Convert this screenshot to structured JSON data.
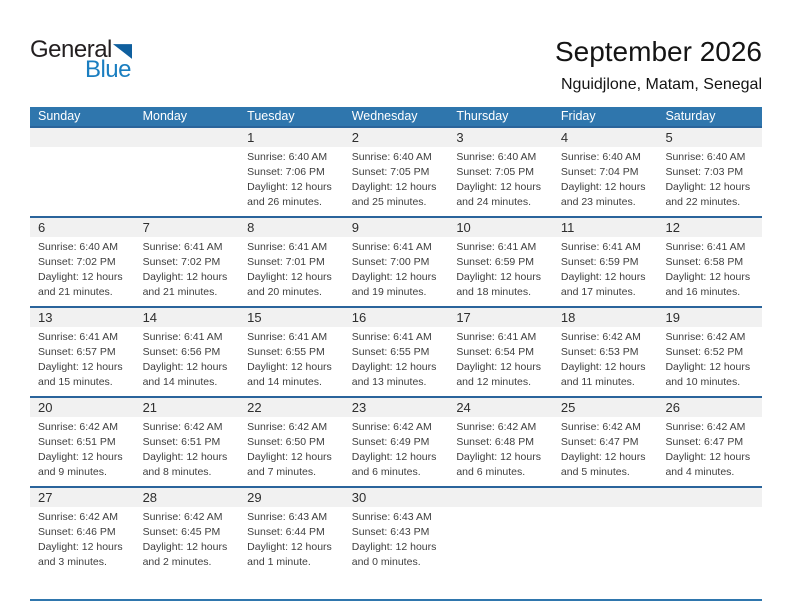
{
  "logo": {
    "part1": "General",
    "part2": "Blue"
  },
  "title": "September 2026",
  "subtitle": "Nguidjlone, Matam, Senegal",
  "weekdays": [
    "Sunday",
    "Monday",
    "Tuesday",
    "Wednesday",
    "Thursday",
    "Friday",
    "Saturday"
  ],
  "colors": {
    "header_bg": "#2f76ad",
    "row_border": "#2a649b",
    "band_bg": "#f1f1f1",
    "bottom_line": "#2f76ad",
    "logo_blue": "#1a7ec0",
    "logo_triangle": "#0f5f9e",
    "logo_black": "#231f20"
  },
  "weeks": [
    [
      null,
      null,
      {
        "day": "1",
        "sunrise": "Sunrise: 6:40 AM",
        "sunset": "Sunset: 7:06 PM",
        "daylight1": "Daylight: 12 hours",
        "daylight2": "and 26 minutes."
      },
      {
        "day": "2",
        "sunrise": "Sunrise: 6:40 AM",
        "sunset": "Sunset: 7:05 PM",
        "daylight1": "Daylight: 12 hours",
        "daylight2": "and 25 minutes."
      },
      {
        "day": "3",
        "sunrise": "Sunrise: 6:40 AM",
        "sunset": "Sunset: 7:05 PM",
        "daylight1": "Daylight: 12 hours",
        "daylight2": "and 24 minutes."
      },
      {
        "day": "4",
        "sunrise": "Sunrise: 6:40 AM",
        "sunset": "Sunset: 7:04 PM",
        "daylight1": "Daylight: 12 hours",
        "daylight2": "and 23 minutes."
      },
      {
        "day": "5",
        "sunrise": "Sunrise: 6:40 AM",
        "sunset": "Sunset: 7:03 PM",
        "daylight1": "Daylight: 12 hours",
        "daylight2": "and 22 minutes."
      }
    ],
    [
      {
        "day": "6",
        "sunrise": "Sunrise: 6:40 AM",
        "sunset": "Sunset: 7:02 PM",
        "daylight1": "Daylight: 12 hours",
        "daylight2": "and 21 minutes."
      },
      {
        "day": "7",
        "sunrise": "Sunrise: 6:41 AM",
        "sunset": "Sunset: 7:02 PM",
        "daylight1": "Daylight: 12 hours",
        "daylight2": "and 21 minutes."
      },
      {
        "day": "8",
        "sunrise": "Sunrise: 6:41 AM",
        "sunset": "Sunset: 7:01 PM",
        "daylight1": "Daylight: 12 hours",
        "daylight2": "and 20 minutes."
      },
      {
        "day": "9",
        "sunrise": "Sunrise: 6:41 AM",
        "sunset": "Sunset: 7:00 PM",
        "daylight1": "Daylight: 12 hours",
        "daylight2": "and 19 minutes."
      },
      {
        "day": "10",
        "sunrise": "Sunrise: 6:41 AM",
        "sunset": "Sunset: 6:59 PM",
        "daylight1": "Daylight: 12 hours",
        "daylight2": "and 18 minutes."
      },
      {
        "day": "11",
        "sunrise": "Sunrise: 6:41 AM",
        "sunset": "Sunset: 6:59 PM",
        "daylight1": "Daylight: 12 hours",
        "daylight2": "and 17 minutes."
      },
      {
        "day": "12",
        "sunrise": "Sunrise: 6:41 AM",
        "sunset": "Sunset: 6:58 PM",
        "daylight1": "Daylight: 12 hours",
        "daylight2": "and 16 minutes."
      }
    ],
    [
      {
        "day": "13",
        "sunrise": "Sunrise: 6:41 AM",
        "sunset": "Sunset: 6:57 PM",
        "daylight1": "Daylight: 12 hours",
        "daylight2": "and 15 minutes."
      },
      {
        "day": "14",
        "sunrise": "Sunrise: 6:41 AM",
        "sunset": "Sunset: 6:56 PM",
        "daylight1": "Daylight: 12 hours",
        "daylight2": "and 14 minutes."
      },
      {
        "day": "15",
        "sunrise": "Sunrise: 6:41 AM",
        "sunset": "Sunset: 6:55 PM",
        "daylight1": "Daylight: 12 hours",
        "daylight2": "and 14 minutes."
      },
      {
        "day": "16",
        "sunrise": "Sunrise: 6:41 AM",
        "sunset": "Sunset: 6:55 PM",
        "daylight1": "Daylight: 12 hours",
        "daylight2": "and 13 minutes."
      },
      {
        "day": "17",
        "sunrise": "Sunrise: 6:41 AM",
        "sunset": "Sunset: 6:54 PM",
        "daylight1": "Daylight: 12 hours",
        "daylight2": "and 12 minutes."
      },
      {
        "day": "18",
        "sunrise": "Sunrise: 6:42 AM",
        "sunset": "Sunset: 6:53 PM",
        "daylight1": "Daylight: 12 hours",
        "daylight2": "and 11 minutes."
      },
      {
        "day": "19",
        "sunrise": "Sunrise: 6:42 AM",
        "sunset": "Sunset: 6:52 PM",
        "daylight1": "Daylight: 12 hours",
        "daylight2": "and 10 minutes."
      }
    ],
    [
      {
        "day": "20",
        "sunrise": "Sunrise: 6:42 AM",
        "sunset": "Sunset: 6:51 PM",
        "daylight1": "Daylight: 12 hours",
        "daylight2": "and 9 minutes."
      },
      {
        "day": "21",
        "sunrise": "Sunrise: 6:42 AM",
        "sunset": "Sunset: 6:51 PM",
        "daylight1": "Daylight: 12 hours",
        "daylight2": "and 8 minutes."
      },
      {
        "day": "22",
        "sunrise": "Sunrise: 6:42 AM",
        "sunset": "Sunset: 6:50 PM",
        "daylight1": "Daylight: 12 hours",
        "daylight2": "and 7 minutes."
      },
      {
        "day": "23",
        "sunrise": "Sunrise: 6:42 AM",
        "sunset": "Sunset: 6:49 PM",
        "daylight1": "Daylight: 12 hours",
        "daylight2": "and 6 minutes."
      },
      {
        "day": "24",
        "sunrise": "Sunrise: 6:42 AM",
        "sunset": "Sunset: 6:48 PM",
        "daylight1": "Daylight: 12 hours",
        "daylight2": "and 6 minutes."
      },
      {
        "day": "25",
        "sunrise": "Sunrise: 6:42 AM",
        "sunset": "Sunset: 6:47 PM",
        "daylight1": "Daylight: 12 hours",
        "daylight2": "and 5 minutes."
      },
      {
        "day": "26",
        "sunrise": "Sunrise: 6:42 AM",
        "sunset": "Sunset: 6:47 PM",
        "daylight1": "Daylight: 12 hours",
        "daylight2": "and 4 minutes."
      }
    ],
    [
      {
        "day": "27",
        "sunrise": "Sunrise: 6:42 AM",
        "sunset": "Sunset: 6:46 PM",
        "daylight1": "Daylight: 12 hours",
        "daylight2": "and 3 minutes."
      },
      {
        "day": "28",
        "sunrise": "Sunrise: 6:42 AM",
        "sunset": "Sunset: 6:45 PM",
        "daylight1": "Daylight: 12 hours",
        "daylight2": "and 2 minutes."
      },
      {
        "day": "29",
        "sunrise": "Sunrise: 6:43 AM",
        "sunset": "Sunset: 6:44 PM",
        "daylight1": "Daylight: 12 hours",
        "daylight2": "and 1 minute."
      },
      {
        "day": "30",
        "sunrise": "Sunrise: 6:43 AM",
        "sunset": "Sunset: 6:43 PM",
        "daylight1": "Daylight: 12 hours",
        "daylight2": "and 0 minutes."
      },
      null,
      null,
      null
    ]
  ]
}
